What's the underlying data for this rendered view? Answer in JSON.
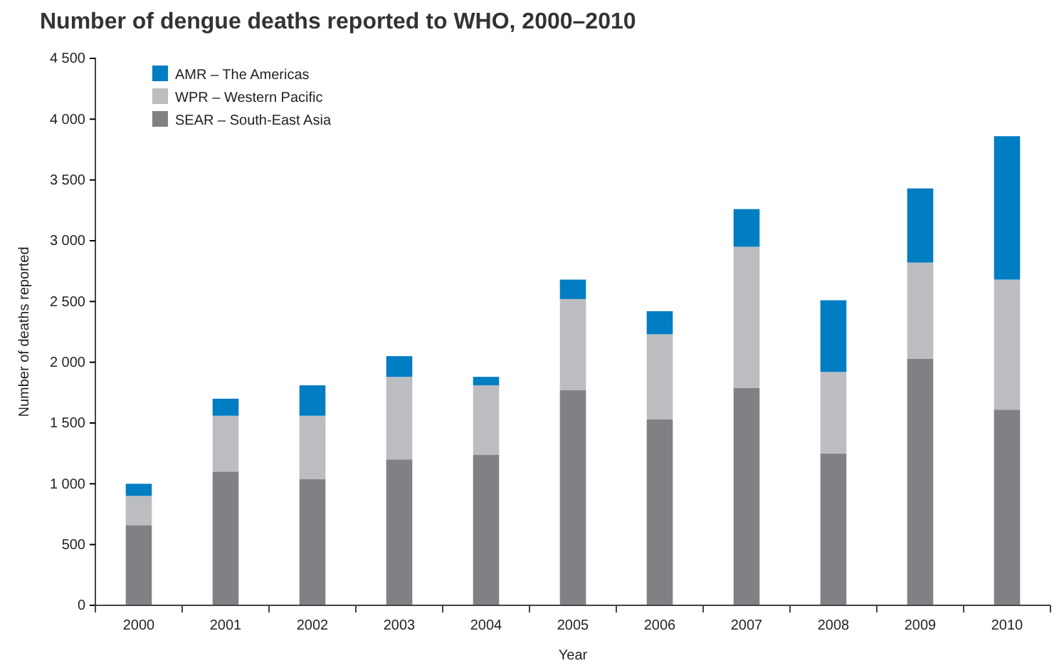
{
  "chart_data": {
    "type": "bar",
    "title": "Number of dengue deaths reported to WHO, 2000–2010",
    "xlabel": "Year",
    "ylabel": "Number of deaths reported",
    "categories": [
      "2000",
      "2001",
      "2002",
      "2003",
      "2004",
      "2005",
      "2006",
      "2007",
      "2008",
      "2009",
      "2010"
    ],
    "stacked": true,
    "series": [
      {
        "name": "SEAR – South-East Asia",
        "color": "#808184",
        "values": [
          660,
          1100,
          1040,
          1200,
          1240,
          1770,
          1530,
          1790,
          1250,
          2030,
          1610
        ]
      },
      {
        "name": "WPR – Western Pacific",
        "color": "#bcbdc0",
        "values": [
          240,
          460,
          520,
          680,
          570,
          750,
          700,
          1160,
          670,
          790,
          1070
        ]
      },
      {
        "name": "AMR – The Americas",
        "color": "#007dc3",
        "values": [
          100,
          140,
          250,
          170,
          70,
          160,
          190,
          310,
          590,
          610,
          1180
        ]
      }
    ],
    "ylim": [
      0,
      4500
    ],
    "yticks": [
      0,
      500,
      {
        "value": 1000,
        "label": "1 000"
      },
      {
        "value": 1500,
        "label": "1 500"
      },
      {
        "value": 2000,
        "label": "2 000"
      },
      {
        "value": 2500,
        "label": "2 500"
      },
      {
        "value": 3000,
        "label": "3 000"
      },
      {
        "value": 3500,
        "label": "3 500"
      },
      {
        "value": 4000,
        "label": "4 000"
      },
      {
        "value": 4500,
        "label": "4 500"
      }
    ],
    "grid": false,
    "legend": "top left"
  }
}
